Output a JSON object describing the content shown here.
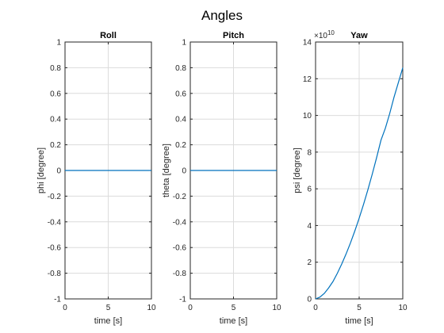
{
  "figure": {
    "title": "Angles"
  },
  "colors": {
    "series": "#0072bd",
    "grid": "#dcdcdc",
    "axis": "#262626"
  },
  "chart_data": [
    {
      "type": "line",
      "title": "Roll",
      "xlabel": "time [s]",
      "ylabel": "phi [degree]",
      "xlim": [
        0,
        10
      ],
      "ylim": [
        -1,
        1
      ],
      "xticks": [
        0,
        5,
        10
      ],
      "xtick_labels": [
        "0",
        "5",
        "10"
      ],
      "yticks": [
        -1,
        -0.8,
        -0.6,
        -0.4,
        -0.2,
        0,
        0.2,
        0.4,
        0.6,
        0.8,
        1
      ],
      "ytick_labels": [
        "-1",
        "-0.8",
        "-0.6",
        "-0.4",
        "-0.2",
        "0",
        "0.2",
        "0.4",
        "0.6",
        "0.8",
        "1"
      ],
      "grid": true,
      "series": [
        {
          "x": [
            0,
            2,
            4,
            6,
            8,
            10
          ],
          "y": [
            0,
            0,
            0,
            0,
            0,
            0
          ]
        }
      ]
    },
    {
      "type": "line",
      "title": "Pitch",
      "xlabel": "time [s]",
      "ylabel": "theta [degree]",
      "xlim": [
        0,
        10
      ],
      "ylim": [
        -1,
        1
      ],
      "xticks": [
        0,
        5,
        10
      ],
      "xtick_labels": [
        "0",
        "5",
        "10"
      ],
      "yticks": [
        -1,
        -0.8,
        -0.6,
        -0.4,
        -0.2,
        0,
        0.2,
        0.4,
        0.6,
        0.8,
        1
      ],
      "ytick_labels": [
        "-1",
        "-0.8",
        "-0.6",
        "-0.4",
        "-0.2",
        "0",
        "0.2",
        "0.4",
        "0.6",
        "0.8",
        "1"
      ],
      "grid": true,
      "series": [
        {
          "x": [
            0,
            2,
            4,
            6,
            8,
            10
          ],
          "y": [
            0,
            0,
            0,
            0,
            0,
            0
          ]
        }
      ]
    },
    {
      "type": "line",
      "title": "Yaw",
      "xlabel": "time [s]",
      "ylabel": "psi [degree]",
      "y_exponent": "×10",
      "y_exponent_power": "10",
      "xlim": [
        0,
        10
      ],
      "ylim": [
        0,
        14
      ],
      "xticks": [
        0,
        5,
        10
      ],
      "xtick_labels": [
        "0",
        "5",
        "10"
      ],
      "yticks": [
        0,
        2,
        4,
        6,
        8,
        10,
        12,
        14
      ],
      "ytick_labels": [
        "0",
        "2",
        "4",
        "6",
        "8",
        "10",
        "12",
        "14"
      ],
      "grid": true,
      "series": [
        {
          "x": [
            0,
            0.5,
            1,
            1.5,
            2,
            2.5,
            3,
            3.5,
            4,
            4.5,
            5,
            5.5,
            6,
            6.5,
            7,
            7.5,
            8,
            8.5,
            9,
            9.5,
            10
          ],
          "y": [
            0,
            0.1,
            0.3,
            0.6,
            0.95,
            1.4,
            1.9,
            2.45,
            3.05,
            3.7,
            4.4,
            5.15,
            5.95,
            6.8,
            7.7,
            8.65,
            9.3,
            10.1,
            11.0,
            11.8,
            12.6
          ]
        }
      ]
    }
  ]
}
